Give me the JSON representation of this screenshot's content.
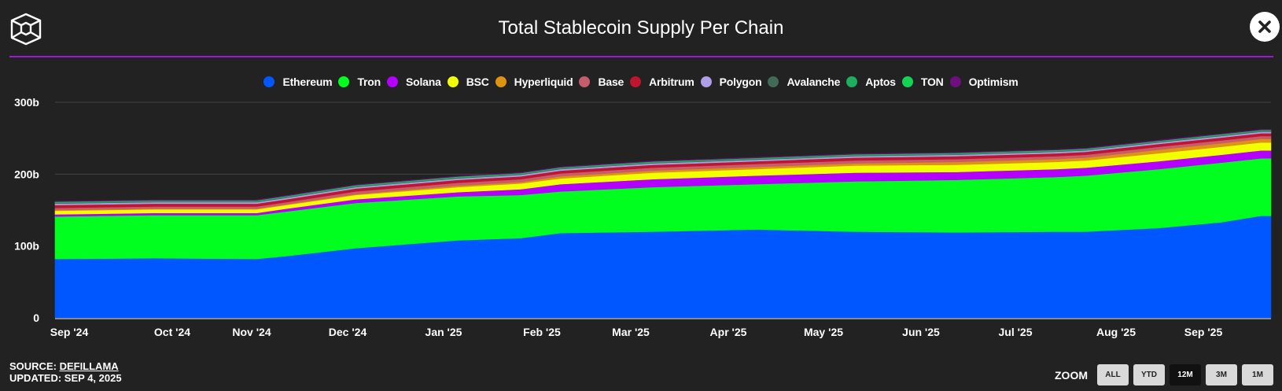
{
  "header": {
    "title": "Total Stablecoin Supply Per Chain",
    "close_icon": "close-icon",
    "logo_icon": "cube-logo-icon"
  },
  "footer": {
    "source_label": "SOURCE: ",
    "source_link": "DEFILLAMA",
    "updated": "UPDATED: SEP 4, 2025"
  },
  "zoom": {
    "label": "ZOOM",
    "buttons": [
      "ALL",
      "YTD",
      "12M",
      "3M",
      "1M"
    ],
    "active": "12M"
  },
  "chart_data": {
    "type": "area",
    "stacked": true,
    "title": "Total Stablecoin Supply Per Chain",
    "xlabel": "",
    "ylabel": "",
    "ylim": [
      0,
      300
    ],
    "y_unit": "b",
    "yticks": [
      "0",
      "100b",
      "200b",
      "300b"
    ],
    "xticks": [
      "Sep '24",
      "Oct '24",
      "Nov '24",
      "Dec '24",
      "Jan '25",
      "Feb '25",
      "Mar '25",
      "Apr '25",
      "May '25",
      "Jun '25",
      "Jul '25",
      "Aug '25",
      "Sep '25"
    ],
    "grid": true,
    "legend_position": "top-center",
    "x": [
      "2024-09-01",
      "2024-10-01",
      "2024-11-01",
      "2024-11-10",
      "2024-12-01",
      "2025-01-01",
      "2025-01-20",
      "2025-02-01",
      "2025-03-01",
      "2025-04-01",
      "2025-05-01",
      "2025-06-01",
      "2025-07-01",
      "2025-07-10",
      "2025-08-01",
      "2025-08-20",
      "2025-09-01",
      "2025-09-04"
    ],
    "series": [
      {
        "name": "Ethereum",
        "color": "#0057ff",
        "values": [
          82,
          83,
          82,
          86,
          97,
          108,
          111,
          118,
          120,
          123,
          120,
          119,
          120,
          120,
          125,
          133,
          142,
          142
        ]
      },
      {
        "name": "Tron",
        "color": "#00ff1f",
        "values": [
          59,
          60,
          61,
          62,
          63,
          61,
          60,
          58,
          62,
          63,
          70,
          73,
          76,
          78,
          82,
          83,
          80,
          80
        ]
      },
      {
        "name": "Solana",
        "color": "#b300ff",
        "values": [
          3,
          3,
          3,
          4,
          5,
          6,
          8,
          10,
          11,
          12,
          12,
          11,
          11,
          11,
          11,
          11,
          11,
          11
        ]
      },
      {
        "name": "BSC",
        "color": "#f2ff00",
        "values": [
          5,
          5,
          5,
          5,
          6,
          7,
          8,
          8,
          9,
          9,
          10,
          10,
          10,
          10,
          11,
          11,
          11,
          11
        ]
      },
      {
        "name": "Hyperliquid",
        "color": "#dd9411",
        "values": [
          1,
          1,
          1,
          1,
          1,
          2,
          2,
          3,
          3,
          3,
          3,
          4,
          4,
          4,
          5,
          5,
          5,
          5
        ]
      },
      {
        "name": "Base",
        "color": "#c65d6b",
        "values": [
          3,
          3,
          3,
          3,
          4,
          4,
          4,
          4,
          4,
          4,
          4,
          4,
          4,
          4,
          4,
          4,
          4,
          4
        ]
      },
      {
        "name": "Arbitrum",
        "color": "#c0142f",
        "values": [
          4,
          4,
          4,
          4,
          4,
          4,
          4,
          4,
          4,
          4,
          4,
          4,
          4,
          4,
          4,
          4,
          4,
          4
        ]
      },
      {
        "name": "Polygon",
        "color": "#b09de8",
        "values": [
          2,
          2,
          2,
          2,
          2,
          2,
          2,
          2,
          2,
          2,
          2,
          2,
          2,
          2,
          2,
          2,
          2,
          2
        ]
      },
      {
        "name": "Avalanche",
        "color": "#3f6b58",
        "values": [
          1,
          1,
          1,
          1,
          1,
          1,
          1,
          1,
          1,
          1,
          1,
          1,
          1,
          1,
          1,
          1,
          1,
          1
        ]
      },
      {
        "name": "Aptos",
        "color": "#1dae5e",
        "values": [
          1,
          1,
          1,
          1,
          1,
          1,
          1,
          1,
          1,
          1,
          1,
          1,
          1,
          1,
          1,
          1,
          1,
          1
        ]
      },
      {
        "name": "TON",
        "color": "#14d453",
        "values": [
          0.5,
          0.5,
          0.5,
          0.5,
          0.5,
          0.5,
          0.5,
          0.5,
          0.5,
          0.5,
          0.5,
          0.5,
          0.5,
          0.5,
          0.5,
          0.5,
          0.5,
          0.5
        ]
      },
      {
        "name": "Optimism",
        "color": "#6e0f7e",
        "values": [
          0.7,
          0.7,
          0.7,
          0.7,
          0.7,
          0.7,
          0.7,
          0.7,
          0.7,
          0.7,
          0.7,
          0.7,
          0.7,
          0.7,
          0.7,
          0.7,
          0.7,
          0.7
        ]
      }
    ]
  }
}
